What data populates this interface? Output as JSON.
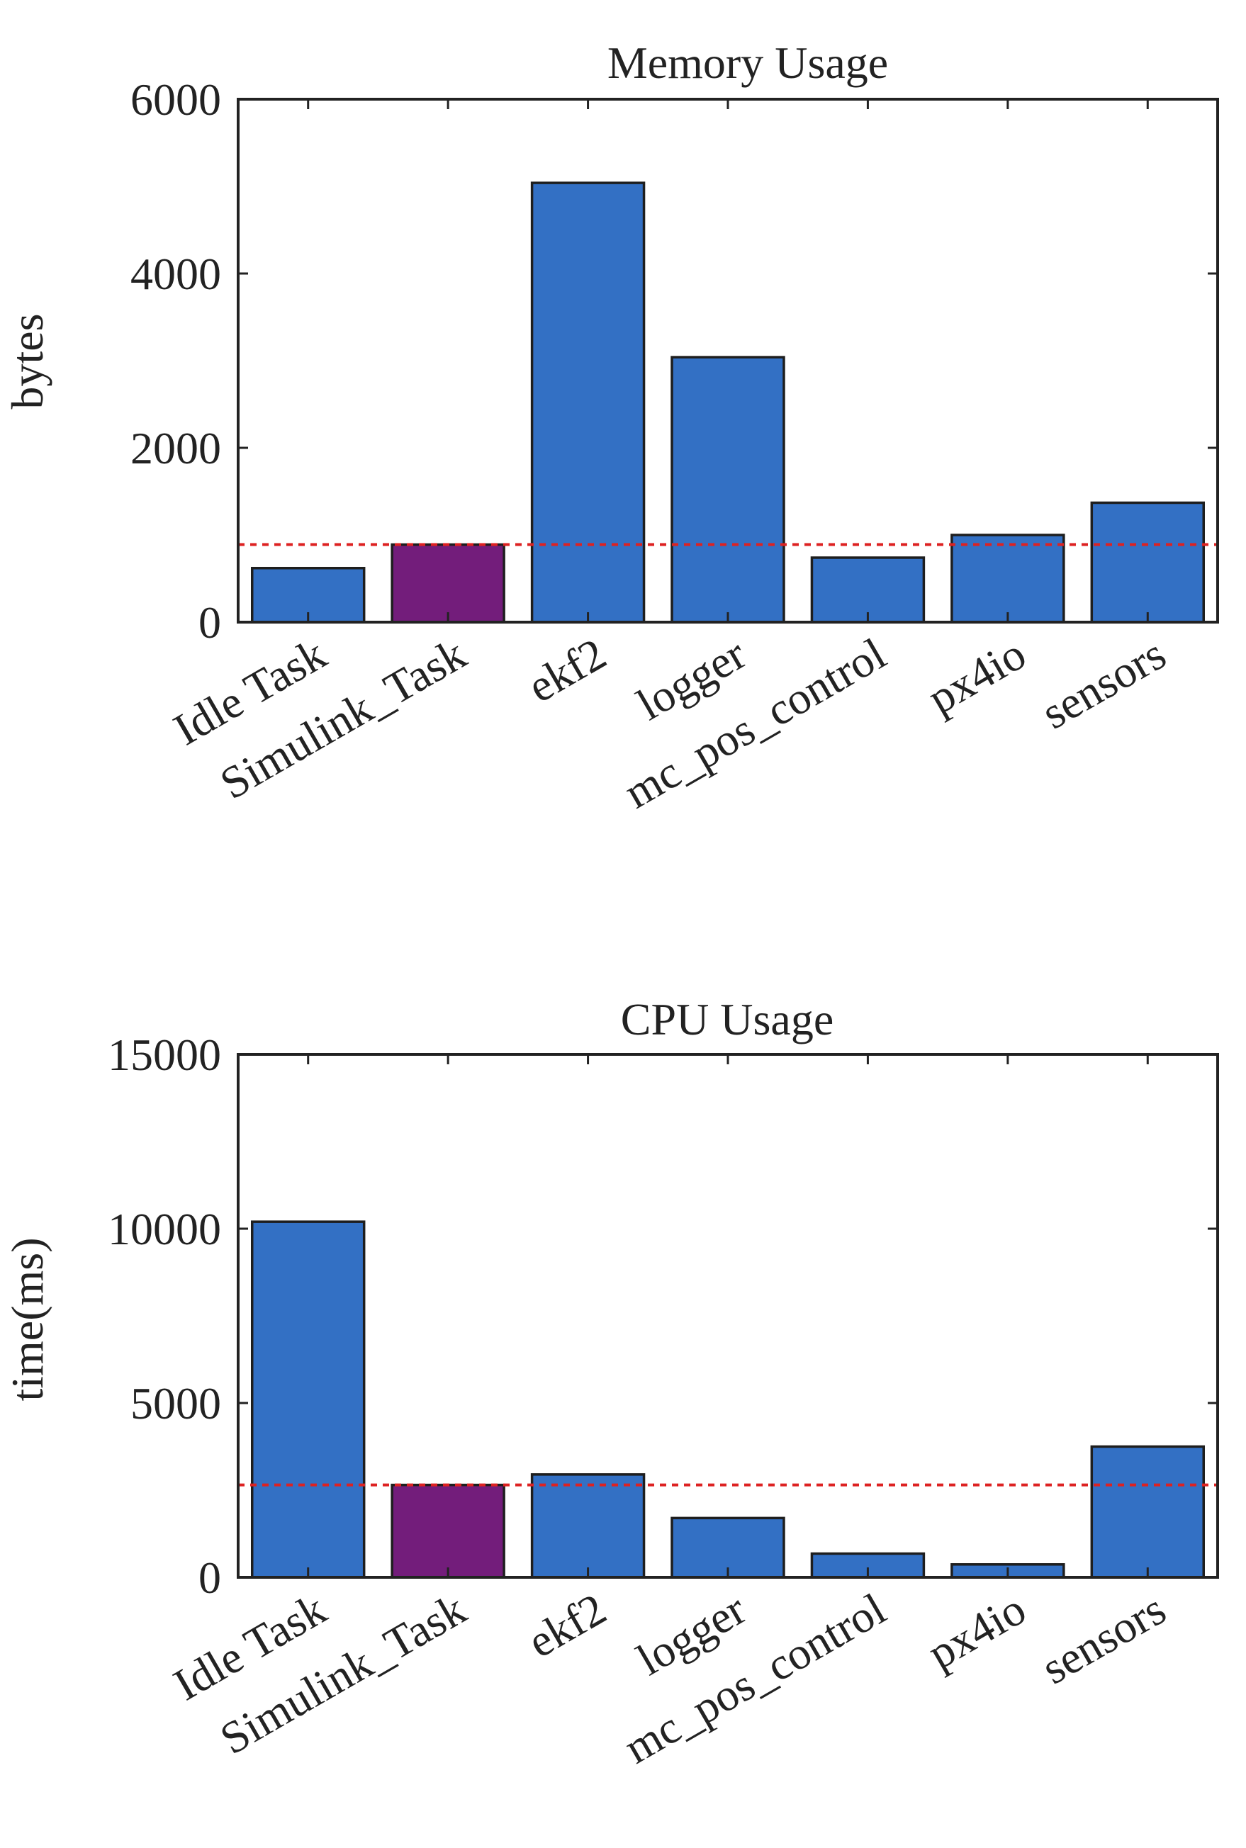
{
  "chart_data": [
    {
      "type": "bar",
      "title": "Memory Usage",
      "xlabel": "",
      "ylabel": "bytes",
      "categories": [
        "Idle Task",
        "Simulink_Task",
        "ekf2",
        "logger",
        "mc_pos_control",
        "px4io",
        "sensors"
      ],
      "values": [
        620,
        890,
        5040,
        3040,
        740,
        1000,
        1370
      ],
      "highlight_index": 1,
      "reference_line": 890,
      "ylim": [
        0,
        6000
      ],
      "yticks": [
        0,
        2000,
        4000,
        6000
      ],
      "ytick_labels": [
        "0",
        "2000",
        "4000",
        "6000"
      ],
      "grid": false,
      "legend": false
    },
    {
      "type": "bar",
      "title": "CPU Usage",
      "xlabel": "",
      "ylabel": "time(ms)",
      "categories": [
        "Idle Task",
        "Simulink_Task",
        "ekf2",
        "logger",
        "mc_pos_control",
        "px4io",
        "sensors"
      ],
      "values": [
        10200,
        2650,
        2950,
        1700,
        680,
        370,
        3750
      ],
      "highlight_index": 1,
      "reference_line": 2650,
      "ylim": [
        0,
        15000
      ],
      "yticks": [
        0,
        5000,
        10000,
        15000
      ],
      "ytick_labels": [
        "0",
        "5000",
        "10000",
        "15000"
      ],
      "grid": false,
      "legend": false
    }
  ],
  "colors": {
    "bar": "#3370c4",
    "highlight_bar": "#731d7b",
    "reference_line": "#dd2222",
    "axis": "#222222"
  }
}
